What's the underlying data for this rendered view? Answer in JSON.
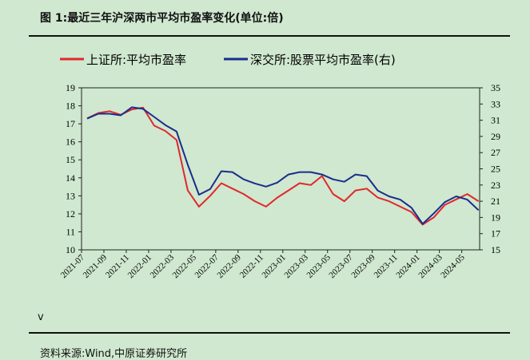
{
  "title": "图 1:最近三年沪深两市平均市盈率变化(单位:倍)",
  "note": "v",
  "source": "资料来源:Wind,中原证券研究所",
  "chart_data": {
    "type": "line",
    "legend_position": "top",
    "grid": false,
    "colors": {
      "left": "#e0282e",
      "right": "#1a2d8c"
    },
    "x_ticks": [
      "2021-07",
      "2021-09",
      "2021-11",
      "2022-01",
      "2022-03",
      "2022-05",
      "2022-07",
      "2022-09",
      "2022-11",
      "2023-01",
      "2023-03",
      "2023-05",
      "2023-07",
      "2023-09",
      "2023-11",
      "2024-01",
      "2024-03",
      "2024-05"
    ],
    "ylim_left": [
      10,
      19
    ],
    "yticks_left": [
      10,
      11,
      12,
      13,
      14,
      15,
      16,
      17,
      18,
      19
    ],
    "ylim_right": [
      15,
      35
    ],
    "yticks_right": [
      15,
      17,
      19,
      21,
      23,
      25,
      27,
      29,
      31,
      33,
      35
    ],
    "series": [
      {
        "name": "上证所:平均市盈率",
        "axis": "left",
        "x": [
          "2021-07",
          "2021-08",
          "2021-09",
          "2021-10",
          "2021-11",
          "2021-12",
          "2022-01",
          "2022-02",
          "2022-03",
          "2022-04",
          "2022-05",
          "2022-06",
          "2022-07",
          "2022-08",
          "2022-09",
          "2022-10",
          "2022-11",
          "2022-12",
          "2023-01",
          "2023-02",
          "2023-03",
          "2023-04",
          "2023-05",
          "2023-06",
          "2023-07",
          "2023-08",
          "2023-09",
          "2023-10",
          "2023-11",
          "2023-12",
          "2024-01",
          "2024-02",
          "2024-03",
          "2024-04",
          "2024-05",
          "2024-06"
        ],
        "values": [
          17.3,
          17.6,
          17.7,
          17.5,
          17.8,
          17.9,
          16.9,
          16.6,
          16.1,
          13.3,
          12.4,
          13.0,
          13.7,
          13.4,
          13.1,
          12.7,
          12.4,
          12.9,
          13.3,
          13.7,
          13.6,
          14.1,
          13.1,
          12.7,
          13.3,
          13.4,
          12.9,
          12.7,
          12.4,
          12.1,
          11.4,
          11.8,
          12.5,
          12.8,
          13.1,
          12.7
        ]
      },
      {
        "name": "深交所:股票平均市盈率(右)",
        "axis": "right",
        "x": [
          "2021-07",
          "2021-08",
          "2021-09",
          "2021-10",
          "2021-11",
          "2021-12",
          "2022-01",
          "2022-02",
          "2022-03",
          "2022-04",
          "2022-05",
          "2022-06",
          "2022-07",
          "2022-08",
          "2022-09",
          "2022-10",
          "2022-11",
          "2022-12",
          "2023-01",
          "2023-02",
          "2023-03",
          "2023-04",
          "2023-05",
          "2023-06",
          "2023-07",
          "2023-08",
          "2023-09",
          "2023-10",
          "2023-11",
          "2023-12",
          "2024-01",
          "2024-02",
          "2024-03",
          "2024-04",
          "2024-05",
          "2024-06"
        ],
        "values": [
          31.2,
          31.8,
          31.8,
          31.6,
          32.6,
          32.4,
          31.4,
          30.4,
          29.6,
          25.5,
          21.8,
          22.5,
          24.7,
          24.6,
          23.7,
          23.2,
          22.8,
          23.3,
          24.3,
          24.6,
          24.6,
          24.3,
          23.7,
          23.4,
          24.3,
          24.1,
          22.3,
          21.6,
          21.2,
          20.2,
          18.2,
          19.5,
          20.9,
          21.6,
          21.2,
          19.9
        ]
      }
    ]
  }
}
